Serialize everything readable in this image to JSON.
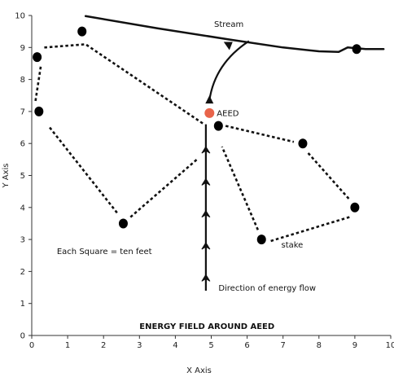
{
  "chart_data": {
    "type": "scatter",
    "title": "ENERGY FIELD AROUND AEED",
    "xlabel": "X Axis",
    "ylabel": "Y Axis",
    "xlim": [
      0,
      10
    ],
    "ylim": [
      0,
      10
    ],
    "x_ticks": [
      "0",
      "1",
      "2",
      "3",
      "4",
      "5",
      "6",
      "7",
      "8",
      "9",
      "10"
    ],
    "y_ticks": [
      "0",
      "1",
      "2",
      "3",
      "4",
      "5",
      "6",
      "7",
      "8",
      "9",
      "10"
    ],
    "grid": false,
    "stakes": [
      {
        "x": 0.15,
        "y": 8.7
      },
      {
        "x": 1.4,
        "y": 9.5
      },
      {
        "x": 0.2,
        "y": 7.0
      },
      {
        "x": 2.55,
        "y": 3.5
      },
      {
        "x": 5.2,
        "y": 6.55
      },
      {
        "x": 7.55,
        "y": 6.0
      },
      {
        "x": 9.0,
        "y": 4.0
      },
      {
        "x": 6.4,
        "y": 3.0
      },
      {
        "x": 9.05,
        "y": 8.95
      }
    ],
    "aeed": {
      "x": 4.95,
      "y": 6.95,
      "label": "AEED",
      "color": "#e8644a"
    },
    "dotted_lines": [
      [
        [
          0.35,
          9.0
        ],
        [
          1.5,
          9.1
        ],
        [
          4.8,
          6.6
        ]
      ],
      [
        [
          0.25,
          8.4
        ],
        [
          0.1,
          7.3
        ]
      ],
      [
        [
          0.5,
          6.5
        ],
        [
          2.4,
          3.8
        ]
      ],
      [
        [
          2.75,
          3.7
        ],
        [
          4.6,
          5.5
        ]
      ],
      [
        [
          5.4,
          6.55
        ],
        [
          7.3,
          6.05
        ]
      ],
      [
        [
          7.7,
          5.7
        ],
        [
          8.85,
          4.25
        ]
      ],
      [
        [
          8.85,
          3.7
        ],
        [
          6.65,
          2.95
        ]
      ],
      [
        [
          6.3,
          3.3
        ],
        [
          5.3,
          5.9
        ]
      ]
    ],
    "stream": [
      [
        1.5,
        9.98
      ],
      [
        3.5,
        9.6
      ],
      [
        5.5,
        9.25
      ],
      [
        7.0,
        9.0
      ],
      [
        8.0,
        8.88
      ],
      [
        8.55,
        8.86
      ],
      [
        8.8,
        9.0
      ],
      [
        9.3,
        8.95
      ],
      [
        9.8,
        8.95
      ]
    ],
    "energy_flow_line": [
      [
        4.85,
        1.4
      ],
      [
        4.85,
        6.6
      ]
    ],
    "flow_arrow_y": [
      1.9,
      2.9,
      3.9,
      4.9,
      5.9
    ],
    "curved_arrow": [
      [
        4.95,
        7.35
      ],
      [
        5.1,
        8.5
      ],
      [
        6.05,
        9.2
      ]
    ],
    "stream_label": "Stream",
    "annotations": [
      {
        "text": "Each Square = ten feet",
        "x": 0.7,
        "y": 2.55,
        "bold": false
      },
      {
        "text": "stake",
        "x": 6.95,
        "y": 2.75,
        "bold": false
      },
      {
        "text": "Direction of energy flow",
        "x": 5.2,
        "y": 1.4,
        "bold": false
      },
      {
        "text": "ENERGY FIELD AROUND AEED",
        "x": 3.0,
        "y": 0.2,
        "bold": true
      }
    ]
  }
}
